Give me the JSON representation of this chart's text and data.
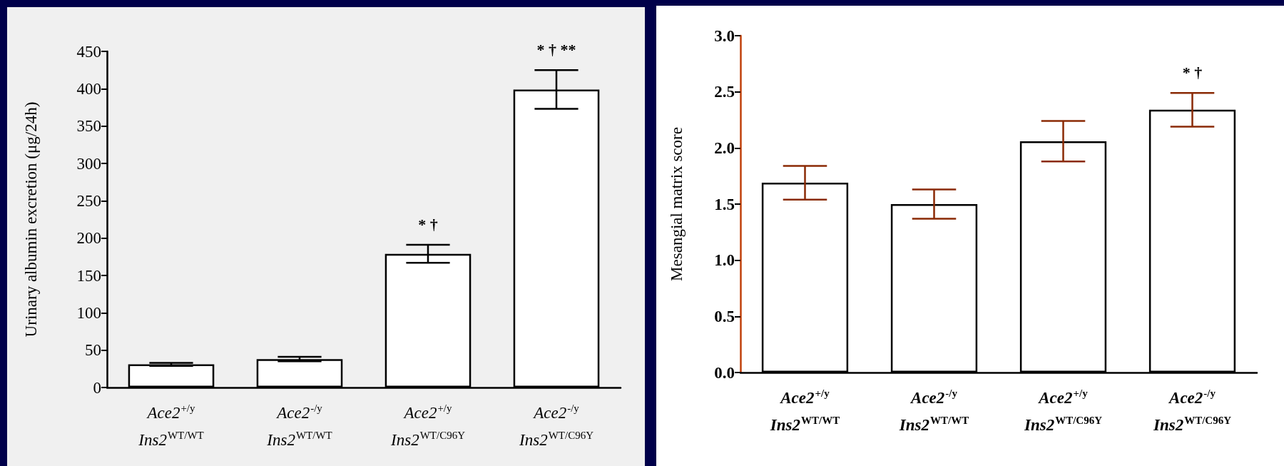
{
  "chart_data": [
    {
      "type": "bar",
      "ylabel": "Urinary albumin excretion (μg/24h)",
      "categories": [
        "Ace2$^{+/y}$\nIns2$^{WT/WT}$",
        "Ace2$^{-/y}$\nIns2$^{WT/WT}$",
        "Ace2$^{+/y}$\nIns2$^{WT/C96Y}$",
        "Ace2$^{-/y}$\nIns2$^{WT/C96Y}$"
      ],
      "values": [
        31,
        38,
        179,
        399
      ],
      "color": "#ffffff",
      "errors": [
        2,
        3,
        12,
        26
      ],
      "ylim": [
        0,
        450
      ],
      "yticks": [
        0,
        50,
        100,
        150,
        200,
        250,
        300,
        350,
        400,
        450
      ],
      "annotations": [
        {
          "text": "* †",
          "x": "Ace2$^{+/y}$\nIns2$^{WT/C96Y}$",
          "y": 191
        },
        {
          "text": "* † **",
          "x": "Ace2$^{-/y}$\nIns2$^{WT/C96Y}$",
          "y": 425
        }
      ]
    },
    {
      "type": "bar",
      "ylabel": "Mesangial matrix score",
      "categories": [
        "Ace2$^{+/y}$\nIns2$^{WT/WT}$",
        "Ace2$^{-/y}$\nIns2$^{WT/WT}$",
        "Ace2$^{+/y}$\nIns2$^{WT/C96Y}$",
        "Ace2$^{-/y}$\nIns2$^{WT/C96Y}$"
      ],
      "values": [
        1.69,
        1.5,
        2.06,
        2.34
      ],
      "color": "#ffffff",
      "errors": [
        0.15,
        0.13,
        0.18,
        0.15
      ],
      "ylim": [
        0,
        3
      ],
      "yticks": [
        {
          "value": 0,
          "label": "0.0"
        },
        {
          "value": 0.5,
          "label": "0.5"
        },
        {
          "value": 1,
          "label": "1.0"
        },
        {
          "value": 1.5,
          "label": "1.5"
        },
        {
          "value": 2,
          "label": "2.0"
        },
        {
          "value": 2.5,
          "label": "2.5"
        },
        {
          "value": 3,
          "label": "3.0"
        }
      ],
      "annotations": [
        {
          "text": "* †",
          "x": "Ace2$^{-/y}$\nIns2$^{WT/C96Y}$",
          "y": 2.49
        }
      ]
    }
  ]
}
